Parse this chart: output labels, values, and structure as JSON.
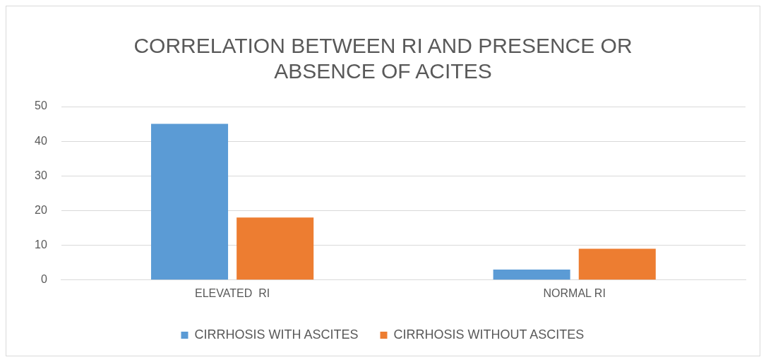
{
  "chart_data": {
    "type": "bar",
    "title": "CORRELATION BETWEEN RI AND PRESENCE OR ABSENCE OF ACITES",
    "categories": [
      "ELEVATED  RI",
      "NORMAL RI"
    ],
    "series": [
      {
        "name": "CIRRHOSIS WITH ASCITES",
        "color": "#5b9bd5",
        "values": [
          45,
          3
        ]
      },
      {
        "name": "CIRRHOSIS WITHOUT ASCITES",
        "color": "#ed7d31",
        "values": [
          18,
          9
        ]
      }
    ],
    "ylim": [
      0,
      50
    ],
    "yticks": [
      0,
      10,
      20,
      30,
      40,
      50
    ],
    "grid": "y",
    "legend": "bottom"
  }
}
